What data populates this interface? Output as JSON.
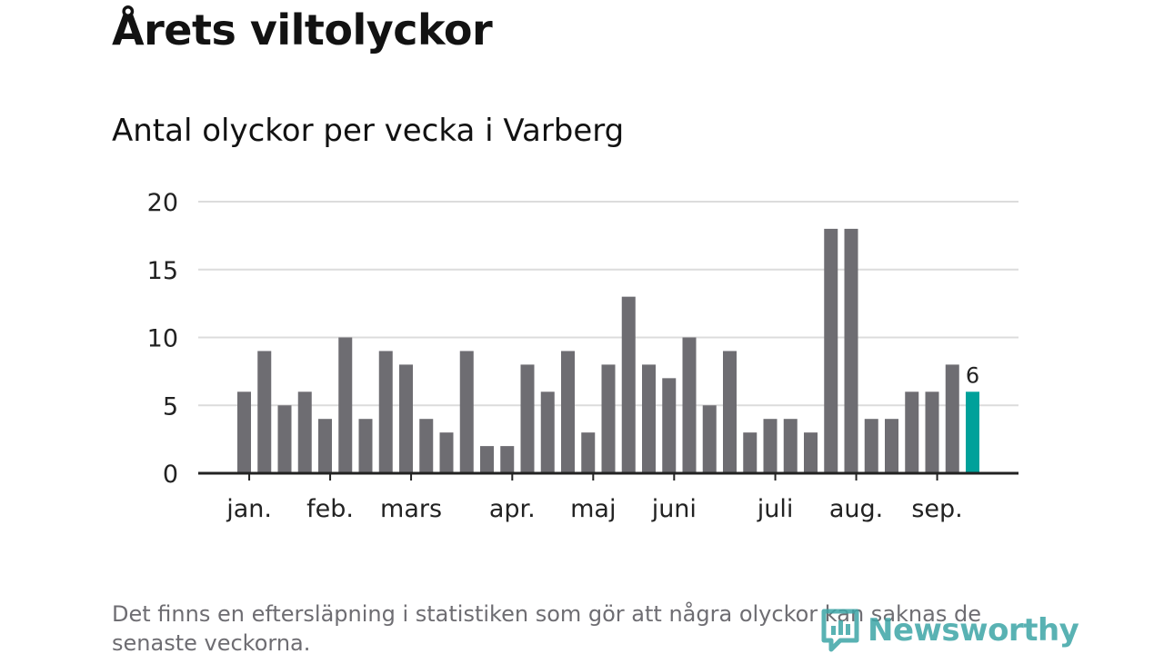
{
  "title": "Årets viltolyckor",
  "subtitle": "Antal olyckor per vecka i Varberg",
  "footnote": "Det finns en eftersläpning i statistiken som gör att några olyckor kan saknas de senaste veckorna.",
  "logo_text": "Newsworthy",
  "colors": {
    "bar": "#6e6d72",
    "highlight": "#00a19a",
    "grid": "#dcdcdc",
    "axis": "#222222",
    "text": "#222222",
    "logo": "#3da5a6"
  },
  "chart_data": {
    "type": "bar",
    "title": "",
    "xlabel": "",
    "ylabel": "",
    "ylim": [
      0,
      20
    ],
    "yticks": [
      0,
      5,
      10,
      15,
      20
    ],
    "grid": true,
    "values": [
      6,
      9,
      5,
      6,
      4,
      10,
      4,
      9,
      8,
      4,
      3,
      9,
      2,
      2,
      8,
      6,
      9,
      3,
      8,
      13,
      8,
      7,
      10,
      5,
      9,
      3,
      4,
      4,
      3,
      18,
      18,
      4,
      4,
      6,
      6,
      8,
      6
    ],
    "highlight_last": true,
    "last_value_label": "6",
    "month_labels": [
      {
        "label": "jan.",
        "bar_index": 0.25
      },
      {
        "label": "feb.",
        "bar_index": 4.25
      },
      {
        "label": "mars",
        "bar_index": 8.25
      },
      {
        "label": "apr.",
        "bar_index": 13.25
      },
      {
        "label": "maj",
        "bar_index": 17.25
      },
      {
        "label": "juni",
        "bar_index": 21.25
      },
      {
        "label": "juli",
        "bar_index": 26.25
      },
      {
        "label": "aug.",
        "bar_index": 30.25
      },
      {
        "label": "sep.",
        "bar_index": 34.25
      }
    ]
  }
}
